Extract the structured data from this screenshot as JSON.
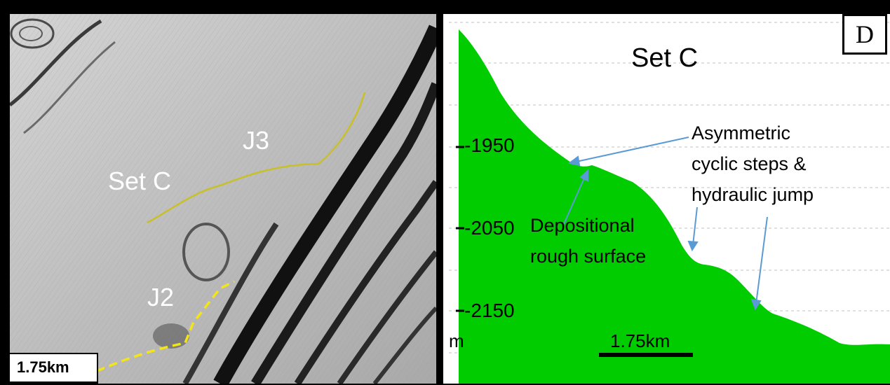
{
  "left_panel": {
    "labels": {
      "set": "Set C",
      "j3": "J3",
      "j2": "J2"
    },
    "scale_bar": "1.75km",
    "colors": {
      "solid_line": "#c8c02a",
      "dashed_line": "#f3e41a"
    }
  },
  "right_panel": {
    "panel_letter": "D",
    "title": "Set C",
    "depth_ticks": [
      "-1950",
      "-2050",
      "-2150"
    ],
    "unit": "m",
    "scale_bar": "1.75km",
    "annotations": {
      "asymmetric": [
        "Asymmetric",
        "cyclic steps &",
        "hydraulic jump"
      ],
      "depositional": [
        "Depositional",
        "rough surface"
      ]
    },
    "colors": {
      "profile_fill": "#00cc00",
      "arrow": "#5b9bd5"
    }
  }
}
